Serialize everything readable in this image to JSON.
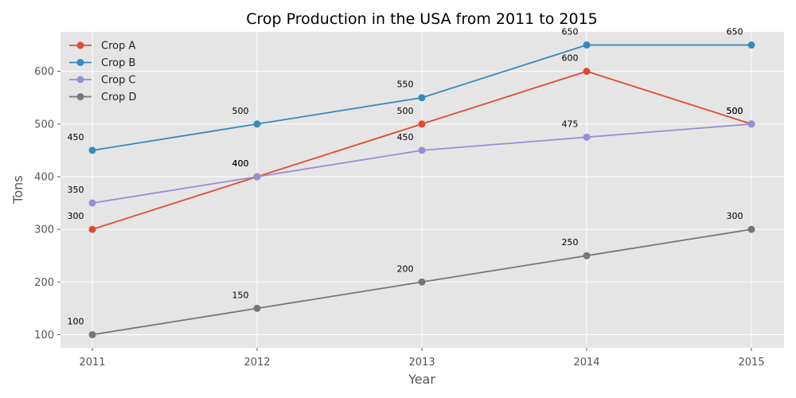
{
  "chart_data": {
    "type": "line",
    "title": "Crop Production in the USA from 2011 to 2015",
    "xlabel": "Year",
    "ylabel": "Tons",
    "categories": [
      "2011",
      "2012",
      "2013",
      "2014",
      "2015"
    ],
    "ylim": [
      75,
      675
    ],
    "yticks": [
      100,
      200,
      300,
      400,
      500,
      600
    ],
    "grid": true,
    "legend_position": "top-left",
    "series": [
      {
        "name": "Crop A",
        "color": "#E24A33",
        "values": [
          300,
          400,
          500,
          600,
          500
        ]
      },
      {
        "name": "Crop B",
        "color": "#348ABD",
        "values": [
          450,
          500,
          550,
          650,
          650
        ]
      },
      {
        "name": "Crop C",
        "color": "#988ED5",
        "values": [
          350,
          400,
          450,
          475,
          500
        ]
      },
      {
        "name": "Crop D",
        "color": "#777777",
        "values": [
          100,
          150,
          200,
          250,
          300
        ]
      }
    ]
  }
}
